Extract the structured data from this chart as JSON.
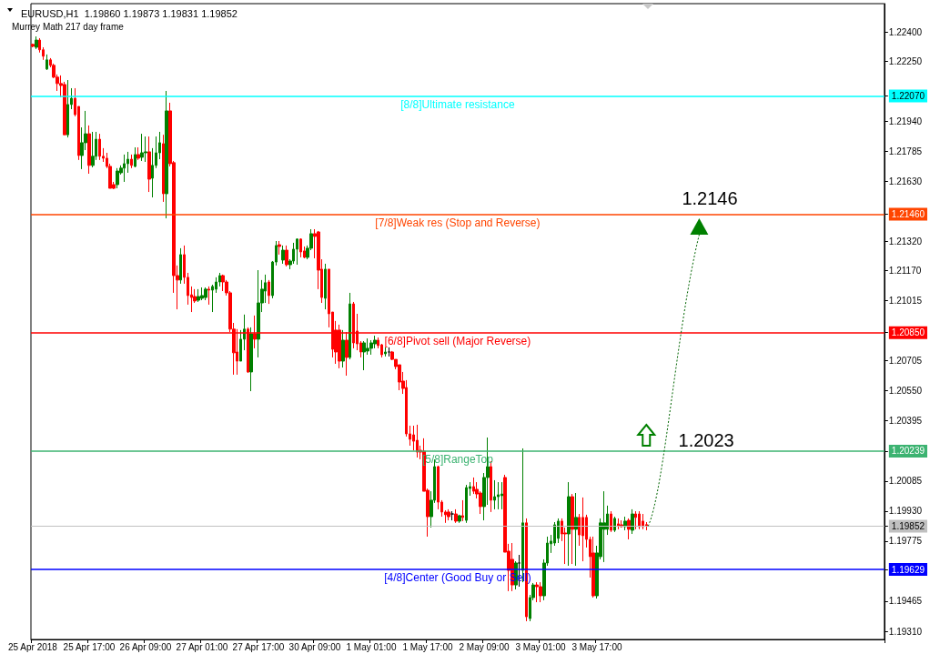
{
  "chart_data": {
    "type": "candlestick",
    "title": "EURUSD,H1  1.19860 1.19873 1.19831 1.19852",
    "subtitle": "Murrey Math 217 day frame",
    "categories": [
      "25 Apr 2018",
      null,
      null,
      null,
      null,
      null,
      null,
      null,
      null,
      null,
      null,
      null,
      null,
      null,
      null,
      null,
      "25 Apr 17:00",
      null,
      null,
      null,
      null,
      null,
      null,
      null,
      null,
      null,
      null,
      null,
      null,
      null,
      null,
      null,
      "26 Apr 09:00",
      null,
      null,
      null,
      null,
      null,
      null,
      null,
      null,
      null,
      null,
      null,
      null,
      null,
      null,
      null,
      "27 Apr 01:00",
      null,
      null,
      null,
      null,
      null,
      null,
      null,
      null,
      null,
      null,
      null,
      null,
      null,
      null,
      null,
      "27 Apr 17:00",
      null,
      null,
      null,
      null,
      null,
      null,
      null,
      null,
      null,
      null,
      null,
      null,
      null,
      null,
      null,
      "30 Apr 09:00",
      null,
      null,
      null,
      null,
      null,
      null,
      null,
      null,
      null,
      null,
      null,
      null,
      null,
      null,
      null,
      "1 May 01:00",
      null,
      null,
      null,
      null,
      null,
      null,
      null,
      null,
      null,
      null,
      null,
      null,
      null,
      null,
      null,
      "1 May 17:00",
      null,
      null,
      null,
      null,
      null,
      null,
      null,
      null,
      null,
      null,
      null,
      null,
      null,
      null,
      null,
      "2 May 09:00",
      null,
      null,
      null,
      null,
      null,
      null,
      null,
      null,
      null,
      null,
      null,
      null,
      null,
      null,
      null,
      "3 May 01:00",
      null,
      null,
      null,
      null,
      null,
      null,
      null,
      null,
      null,
      null,
      null,
      null,
      null,
      null,
      null,
      "3 May 17:00",
      null,
      null,
      null,
      null,
      null,
      null,
      null,
      null,
      null,
      null,
      null,
      null,
      null,
      null,
      null,
      null,
      null,
      null,
      null,
      null,
      null,
      null,
      null,
      null,
      null,
      null,
      null,
      null,
      null,
      null,
      null,
      null,
      null,
      null,
      null,
      null,
      null,
      null,
      null,
      null,
      null,
      null,
      null,
      null,
      null,
      null,
      null,
      null,
      null,
      null,
      null,
      null,
      null,
      null,
      null,
      null,
      null,
      null,
      null,
      null,
      null,
      null,
      null,
      null,
      null,
      null,
      null,
      null,
      null,
      null,
      null,
      null,
      null,
      null,
      null,
      null,
      null,
      null,
      null,
      null,
      null
    ],
    "ohlc": [
      [
        1.22336,
        1.2234,
        1.22321,
        1.22326
      ],
      [
        1.22321,
        1.22377,
        1.22312,
        1.22358
      ],
      [
        1.22358,
        1.22368,
        1.22294,
        1.22308
      ],
      [
        1.22308,
        1.22321,
        1.22256,
        1.22275
      ],
      [
        1.22209,
        1.22284,
        1.22204,
        1.22256
      ],
      [
        1.22256,
        1.22265,
        1.22218,
        1.22228
      ],
      [
        1.22228,
        1.22237,
        1.22162,
        1.22167
      ],
      [
        1.22167,
        1.22181,
        1.22096,
        1.22134
      ],
      [
        1.22134,
        1.22176,
        1.22063,
        1.22124
      ],
      [
        1.22129,
        1.22143,
        1.2187,
        1.2187
      ],
      [
        1.2187,
        1.22152,
        1.21856,
        1.22026
      ],
      [
        1.22026,
        1.2211,
        1.22002,
        1.22058
      ],
      [
        1.22058,
        1.2211,
        1.21965,
        1.21974
      ],
      [
        1.22016,
        1.22016,
        1.2174,
        1.21763
      ],
      [
        1.21763,
        1.21908,
        1.21693,
        1.21829
      ],
      [
        1.21829,
        1.21993,
        1.21791,
        1.21875
      ],
      [
        1.21875,
        1.21918,
        1.21669,
        1.21712
      ],
      [
        1.21712,
        1.21885,
        1.21702,
        1.21759
      ],
      [
        1.21759,
        1.21885,
        1.2174,
        1.21847
      ],
      [
        1.21847,
        1.21875,
        1.2174,
        1.21759
      ],
      [
        1.21759,
        1.21801,
        1.2173,
        1.21749
      ],
      [
        1.21749,
        1.21777,
        1.21698,
        1.21707
      ],
      [
        1.21707,
        1.21721,
        1.21594,
        1.21594
      ],
      [
        1.21613,
        1.21627,
        1.2159,
        1.21594
      ],
      [
        1.21613,
        1.21698,
        1.21594,
        1.21683
      ],
      [
        1.21674,
        1.21712,
        1.21665,
        1.21698
      ],
      [
        1.21698,
        1.21768,
        1.21627,
        1.21721
      ],
      [
        1.21721,
        1.21782,
        1.21674,
        1.21744
      ],
      [
        1.21744,
        1.21768,
        1.21698,
        1.21712
      ],
      [
        1.21707,
        1.21805,
        1.21702,
        1.21768
      ],
      [
        1.21768,
        1.21805,
        1.2174,
        1.21749
      ],
      [
        1.21754,
        1.21875,
        1.21735,
        1.21777
      ],
      [
        1.21777,
        1.21861,
        1.2173,
        1.21782
      ],
      [
        1.21782,
        1.21861,
        1.21575,
        1.21641
      ],
      [
        1.21646,
        1.21801,
        1.21547,
        1.21712
      ],
      [
        1.21712,
        1.21861,
        1.21698,
        1.21777
      ],
      [
        1.21777,
        1.21885,
        1.21744,
        1.21829
      ],
      [
        1.21824,
        1.2187,
        1.21524,
        1.21566
      ],
      [
        1.21566,
        1.22096,
        1.21439,
        1.21993
      ],
      [
        1.21993,
        1.22035,
        1.21707,
        1.21721
      ],
      [
        1.21726,
        1.21735,
        1.21055,
        1.21144
      ],
      [
        1.21144,
        1.21196,
        1.2097,
        1.21121
      ],
      [
        1.21121,
        1.21285,
        1.21102,
        1.21252
      ],
      [
        1.21252,
        1.21299,
        1.21102,
        1.21135
      ],
      [
        1.21135,
        1.21158,
        1.20994,
        1.21041
      ],
      [
        1.21045,
        1.21088,
        1.20956,
        1.21031
      ],
      [
        1.21036,
        1.21074,
        1.21003,
        1.21013
      ],
      [
        1.21017,
        1.21074,
        1.21008,
        1.21036
      ],
      [
        1.21027,
        1.21083,
        1.21017,
        1.21041
      ],
      [
        1.21031,
        1.21083,
        1.21017,
        1.21074
      ],
      [
        1.21074,
        1.21088,
        1.20994,
        1.21069
      ],
      [
        1.21069,
        1.21097,
        1.20956,
        1.21088
      ],
      [
        1.21074,
        1.21135,
        1.21055,
        1.21111
      ],
      [
        1.21111,
        1.21158,
        1.21088,
        1.21144
      ],
      [
        1.21144,
        1.21149,
        1.21064,
        1.21111
      ],
      [
        1.21111,
        1.21121,
        1.21041,
        1.21055
      ],
      [
        1.21055,
        1.21064,
        1.20853,
        1.20868
      ],
      [
        1.20868,
        1.209,
        1.20633,
        1.20746
      ],
      [
        1.2075,
        1.20868,
        1.20633,
        1.20703
      ],
      [
        1.20703,
        1.20863,
        1.20703,
        1.20816
      ],
      [
        1.20816,
        1.20943,
        1.20759,
        1.20868
      ],
      [
        1.20868,
        1.20877,
        1.20642,
        1.20647
      ],
      [
        1.20647,
        1.20877,
        1.20548,
        1.20844
      ],
      [
        1.20844,
        1.20938,
        1.20769,
        1.20816
      ],
      [
        1.20816,
        1.21172,
        1.20722,
        1.21003
      ],
      [
        1.21003,
        1.21121,
        1.20956,
        1.21074
      ],
      [
        1.21064,
        1.21149,
        1.21003,
        1.21107
      ],
      [
        1.21111,
        1.21121,
        1.20998,
        1.21041
      ],
      [
        1.21041,
        1.21219,
        1.21027,
        1.21214
      ],
      [
        1.21214,
        1.21322,
        1.21196,
        1.21299
      ],
      [
        1.21303,
        1.21322,
        1.21252,
        1.21294
      ],
      [
        1.21224,
        1.21299,
        1.21205,
        1.21275
      ],
      [
        1.21275,
        1.21299,
        1.21191,
        1.212
      ],
      [
        1.212,
        1.21228,
        1.21177,
        1.21219
      ],
      [
        1.21219,
        1.21313,
        1.21205,
        1.2128
      ],
      [
        1.2128,
        1.21336,
        1.212,
        1.21332
      ],
      [
        1.21332,
        1.21336,
        1.21238,
        1.21266
      ],
      [
        1.21271,
        1.21294,
        1.21233,
        1.21238
      ],
      [
        1.21238,
        1.21299,
        1.21228,
        1.21285
      ],
      [
        1.21285,
        1.21383,
        1.21275,
        1.2136
      ],
      [
        1.2136,
        1.21383,
        1.21233,
        1.21346
      ],
      [
        1.21369,
        1.21374,
        1.21074,
        1.21172
      ],
      [
        1.21177,
        1.21228,
        1.21003,
        1.21031
      ],
      [
        1.21027,
        1.21205,
        1.2097,
        1.21177
      ],
      [
        1.21177,
        1.21177,
        1.20877,
        1.20947
      ],
      [
        1.20956,
        1.20956,
        1.20722,
        1.20764
      ],
      [
        1.20863,
        1.2091,
        1.20689,
        1.2075
      ],
      [
        1.20863,
        1.20891,
        1.20666,
        1.20703
      ],
      [
        1.20703,
        1.20863,
        1.2067,
        1.20811
      ],
      [
        1.20811,
        1.20853,
        1.20628,
        1.20722
      ],
      [
        1.20722,
        1.21055,
        1.20712,
        1.20998
      ],
      [
        1.20998,
        1.21008,
        1.20769,
        1.20797
      ],
      [
        1.20858,
        1.20947,
        1.20759,
        1.20792
      ],
      [
        1.20797,
        1.20806,
        1.20722,
        1.2075
      ],
      [
        1.2075,
        1.20806,
        1.20656,
        1.20797
      ],
      [
        1.20755,
        1.2082,
        1.20736,
        1.20769
      ],
      [
        1.20769,
        1.20811,
        1.20736,
        1.20797
      ],
      [
        1.20792,
        1.20834,
        1.20769,
        1.20811
      ],
      [
        1.20811,
        1.20825,
        1.20769,
        1.20783
      ],
      [
        1.20787,
        1.20792,
        1.20722,
        1.20736
      ],
      [
        1.20741,
        1.20774,
        1.20727,
        1.2075
      ],
      [
        1.2075,
        1.20774,
        1.20727,
        1.2075
      ],
      [
        1.2075,
        1.20755,
        1.20708,
        1.20712
      ],
      [
        1.20712,
        1.20712,
        1.20661,
        1.20675
      ],
      [
        1.20684,
        1.20684,
        1.20553,
        1.20595
      ],
      [
        1.206,
        1.20647,
        1.20534,
        1.20562
      ],
      [
        1.20567,
        1.20605,
        1.20314,
        1.20328
      ],
      [
        1.20328,
        1.2037,
        1.20267,
        1.203
      ],
      [
        1.20323,
        1.2037,
        1.20243,
        1.2029
      ],
      [
        1.20295,
        1.20375,
        1.20206,
        1.20234
      ],
      [
        1.20243,
        1.20267,
        1.20197,
        1.20234
      ],
      [
        1.20239,
        1.20305,
        1.20032,
        1.20032
      ],
      [
        1.20037,
        1.20046,
        1.19798,
        1.19901
      ],
      [
        1.19901,
        1.20032,
        1.19845,
        1.19986
      ],
      [
        1.19986,
        1.20196,
        1.19972,
        1.20159
      ],
      [
        1.20159,
        1.20164,
        1.19939,
        1.19976
      ],
      [
        1.19976,
        1.19986,
        1.19901,
        1.19925
      ],
      [
        1.19925,
        1.19934,
        1.19869,
        1.19911
      ],
      [
        1.19925,
        1.19939,
        1.19882,
        1.19901
      ],
      [
        1.19915,
        1.19929,
        1.19882,
        1.19915
      ],
      [
        1.19915,
        1.19939,
        1.19869,
        1.19878
      ],
      [
        1.19878,
        1.19911,
        1.19869,
        1.19906
      ],
      [
        1.19906,
        1.19986,
        1.19878,
        1.19897
      ],
      [
        1.19882,
        1.20065,
        1.19869,
        1.20051
      ],
      [
        1.20046,
        1.20079,
        1.20009,
        1.20056
      ],
      [
        1.20056,
        1.20103,
        1.20018,
        1.20032
      ],
      [
        1.20042,
        1.20079,
        1.19995,
        1.20018
      ],
      [
        1.20023,
        1.20032,
        1.19915,
        1.19953
      ],
      [
        1.19953,
        1.20126,
        1.19882,
        1.20103
      ],
      [
        1.20103,
        1.20309,
        1.19962,
        1.20159
      ],
      [
        1.20159,
        1.20187,
        1.19925,
        1.19986
      ],
      [
        1.19986,
        1.20089,
        1.19939,
        1.20004
      ],
      [
        1.20004,
        1.20079,
        1.19939,
        1.20014
      ],
      [
        1.20009,
        1.20079,
        1.19939,
        1.20018
      ],
      [
        1.20103,
        1.20117,
        1.19718,
        1.19718
      ],
      [
        1.19723,
        1.19761,
        1.19517,
        1.19624
      ],
      [
        1.19681,
        1.19765,
        1.19517,
        1.19549
      ],
      [
        1.19549,
        1.19671,
        1.19526,
        1.19662
      ],
      [
        1.19662,
        1.19704,
        1.1954,
        1.19662
      ],
      [
        1.19624,
        1.20253,
        1.19563,
        1.19869
      ],
      [
        1.19869,
        1.19892,
        1.19362,
        1.19385
      ],
      [
        1.19376,
        1.19498,
        1.19362,
        1.19484
      ],
      [
        1.19484,
        1.19559,
        1.1947,
        1.19549
      ],
      [
        1.19549,
        1.19563,
        1.1946,
        1.1954
      ],
      [
        1.1954,
        1.19563,
        1.1946,
        1.19493
      ],
      [
        1.19493,
        1.19681,
        1.1947,
        1.19662
      ],
      [
        1.19662,
        1.19798,
        1.19648,
        1.19765
      ],
      [
        1.19761,
        1.19807,
        1.19714,
        1.19775
      ],
      [
        1.19765,
        1.19873,
        1.19751,
        1.19859
      ],
      [
        1.19789,
        1.19892,
        1.19765,
        1.19878
      ],
      [
        1.19878,
        1.19892,
        1.19775,
        1.19812
      ],
      [
        1.19817,
        1.19845,
        1.19657,
        1.19812
      ],
      [
        1.19812,
        1.20079,
        1.19648,
        1.20004
      ],
      [
        1.20004,
        1.20018,
        1.19657,
        1.19836
      ],
      [
        1.19836,
        1.20023,
        1.19648,
        1.19897
      ],
      [
        1.19897,
        1.19915,
        1.19751,
        1.19807
      ],
      [
        1.19897,
        1.2,
        1.19671,
        1.19803
      ],
      [
        1.19897,
        1.19911,
        1.19742,
        1.19784
      ],
      [
        1.19784,
        1.19798,
        1.19587,
        1.19695
      ],
      [
        1.19714,
        1.19798,
        1.19484,
        1.19493
      ],
      [
        1.19493,
        1.19751,
        1.19479,
        1.19714
      ],
      [
        1.19695,
        1.19892,
        1.19681,
        1.19869
      ],
      [
        1.19836,
        1.20032,
        1.19667,
        1.19869
      ],
      [
        1.19836,
        1.19958,
        1.19807,
        1.19915
      ],
      [
        1.19915,
        1.19929,
        1.19822,
        1.19831
      ],
      [
        1.19831,
        1.19901,
        1.19822,
        1.19892
      ],
      [
        1.19864,
        1.19892,
        1.19836,
        1.19855
      ],
      [
        1.19859,
        1.19882,
        1.19845,
        1.1985
      ],
      [
        1.1985,
        1.19901,
        1.19831,
        1.19878
      ],
      [
        1.19882,
        1.19892,
        1.19784,
        1.19836
      ],
      [
        1.19831,
        1.19939,
        1.19812,
        1.19915
      ],
      [
        1.19915,
        1.19929,
        1.19836,
        1.19897
      ],
      [
        1.19915,
        1.19929,
        1.19836,
        1.1985
      ],
      [
        1.19878,
        1.19915,
        1.19836,
        1.1985
      ],
      [
        1.1986,
        1.19873,
        1.19831,
        1.19852
      ],
      null,
      null,
      null,
      null,
      null,
      null,
      null,
      null,
      null,
      null,
      null,
      null,
      null,
      null,
      null,
      null,
      null,
      null,
      null,
      null,
      null,
      null,
      null,
      null,
      null,
      null,
      null,
      null,
      null,
      null,
      null,
      null,
      null,
      null,
      null,
      null,
      null,
      null,
      null,
      null,
      null,
      null,
      null,
      null,
      null,
      null,
      null,
      null,
      null,
      null,
      null,
      null,
      null,
      null,
      null,
      null,
      null,
      null,
      null,
      null,
      null,
      null,
      null,
      null,
      null,
      null,
      null
    ],
    "colors": [
      "#ff0000",
      "#008000",
      "#ff0000",
      "#ff0000",
      "#008000",
      "#ff0000",
      "#ff0000",
      "#ff0000",
      "#ff0000",
      "#ff0000",
      "#008000",
      "#008000",
      "#ff0000",
      "#ff0000",
      "#008000",
      "#008000",
      "#ff0000",
      "#008000",
      "#008000",
      "#ff0000",
      "#ff0000",
      "#ff0000",
      "#ff0000",
      "#ff0000",
      "#008000",
      "#008000",
      "#008000",
      "#008000",
      "#ff0000",
      "#008000",
      "#ff0000",
      "#008000",
      "#008000",
      "#ff0000",
      "#008000",
      "#008000",
      "#008000",
      "#ff0000",
      "#008000",
      "#ff0000",
      "#ff0000",
      "#ff0000",
      "#008000",
      "#ff0000",
      "#ff0000",
      "#ff0000",
      "#ff0000",
      "#008000",
      "#008000",
      "#008000",
      "#ff0000",
      "#008000",
      "#008000",
      "#008000",
      "#ff0000",
      "#ff0000",
      "#ff0000",
      "#ff0000",
      "#ff0000",
      "#008000",
      "#008000",
      "#ff0000",
      "#008000",
      "#ff0000",
      "#008000",
      "#008000",
      "#008000",
      "#ff0000",
      "#008000",
      "#008000",
      "#ff0000",
      "#008000",
      "#ff0000",
      "#008000",
      "#008000",
      "#008000",
      "#ff0000",
      "#ff0000",
      "#008000",
      "#008000",
      "#ff0000",
      "#ff0000",
      "#ff0000",
      "#008000",
      "#ff0000",
      "#ff0000",
      "#ff0000",
      "#ff0000",
      "#008000",
      "#ff0000",
      "#008000",
      "#ff0000",
      "#ff0000",
      "#ff0000",
      "#008000",
      "#008000",
      "#008000",
      "#008000",
      "#ff0000",
      "#ff0000",
      "#008000",
      "#000000",
      "#ff0000",
      "#ff0000",
      "#ff0000",
      "#ff0000",
      "#ff0000",
      "#ff0000",
      "#ff0000",
      "#ff0000",
      "#ff0000",
      "#ff0000",
      "#ff0000",
      "#008000",
      "#008000",
      "#ff0000",
      "#ff0000",
      "#ff0000",
      "#ff0000",
      "#000000",
      "#ff0000",
      "#008000",
      "#ff0000",
      "#008000",
      "#008000",
      "#ff0000",
      "#ff0000",
      "#ff0000",
      "#008000",
      "#008000",
      "#ff0000",
      "#008000",
      "#008000",
      "#008000",
      "#ff0000",
      "#ff0000",
      "#ff0000",
      "#008000",
      "#000000",
      "#008000",
      "#ff0000",
      "#008000",
      "#008000",
      "#ff0000",
      "#ff0000",
      "#008000",
      "#008000",
      "#008000",
      "#008000",
      "#008000",
      "#ff0000",
      "#ff0000",
      "#008000",
      "#ff0000",
      "#008000",
      "#ff0000",
      "#ff0000",
      "#ff0000",
      "#ff0000",
      "#ff0000",
      "#008000",
      "#008000",
      "#008000",
      "#008000",
      "#ff0000",
      "#008000",
      "#ff0000",
      "#ff0000",
      "#008000",
      "#ff0000",
      "#008000",
      "#ff0000",
      "#ff0000",
      "#ff0000",
      "#ff0000",
      null,
      null,
      null,
      null,
      null,
      null,
      null,
      null,
      null,
      null,
      null,
      null,
      null,
      null,
      null,
      null,
      null,
      null,
      null,
      null,
      null,
      null,
      null,
      null,
      null,
      null,
      null,
      null,
      null,
      null,
      null,
      null,
      null,
      null,
      null,
      null,
      null,
      null,
      null,
      null,
      null,
      null,
      null,
      null,
      null,
      null,
      null,
      null,
      null,
      null,
      null,
      null,
      null,
      null,
      null,
      null,
      null,
      null,
      null,
      null,
      null,
      null,
      null,
      null,
      null,
      null,
      null
    ],
    "ylim": [
      1.19268,
      1.22546
    ],
    "yticks": [
      {
        "value": 1.224,
        "label": "1.22400"
      },
      {
        "value": 1.2225,
        "label": "1.22250"
      },
      {
        "value": 1.2207,
        "label": "1.22070"
      },
      {
        "value": 1.2194,
        "label": "1.21940"
      },
      {
        "value": 1.21785,
        "label": "1.21785"
      },
      {
        "value": 1.2163,
        "label": "1.21630"
      },
      {
        "value": 1.2146,
        "label": "1.21460"
      },
      {
        "value": 1.2132,
        "label": "1.21320"
      },
      {
        "value": 1.2117,
        "label": "1.21170"
      },
      {
        "value": 1.21015,
        "label": "1.21015"
      },
      {
        "value": 1.2085,
        "label": "1.20850"
      },
      {
        "value": 1.20705,
        "label": "1.20705"
      },
      {
        "value": 1.2055,
        "label": "1.20550"
      },
      {
        "value": 1.20395,
        "label": "1.20395"
      },
      {
        "value": 1.20239,
        "label": "1.20239"
      },
      {
        "value": 1.20085,
        "label": "1.20085"
      },
      {
        "value": 1.1993,
        "label": "1.19930"
      },
      {
        "value": 1.19852,
        "label": "1.19852"
      },
      {
        "value": 1.19775,
        "label": "1.19775"
      },
      {
        "value": 1.19629,
        "label": "1.19629"
      },
      {
        "value": 1.19465,
        "label": "1.19465"
      },
      {
        "value": 1.1931,
        "label": "1.19310"
      }
    ],
    "ref_lines": [
      {
        "axis": "y",
        "value": 1.2207,
        "label": "[8/8]Ultimate resistance",
        "color": "#00ffff"
      },
      {
        "axis": "y",
        "value": 1.2146,
        "label": "[7/8]Weak res (Stop and Reverse)",
        "color": "#ff4500"
      },
      {
        "axis": "y",
        "value": 1.2085,
        "label": "[6/8]Pivot sell (Major Reverse)",
        "color": "#ff0000"
      },
      {
        "axis": "y",
        "value": 1.20239,
        "label": "[5/8]RangeTop",
        "color": "#3cb371"
      },
      {
        "axis": "y",
        "value": 1.19852,
        "color": "#c0c0c0"
      },
      {
        "axis": "y",
        "value": 1.19629,
        "label": "[4/8]Center (Good Buy or Sell)",
        "color": "#0000ff"
      }
    ],
    "annotations": [
      "1.2146",
      "1.2023"
    ]
  }
}
